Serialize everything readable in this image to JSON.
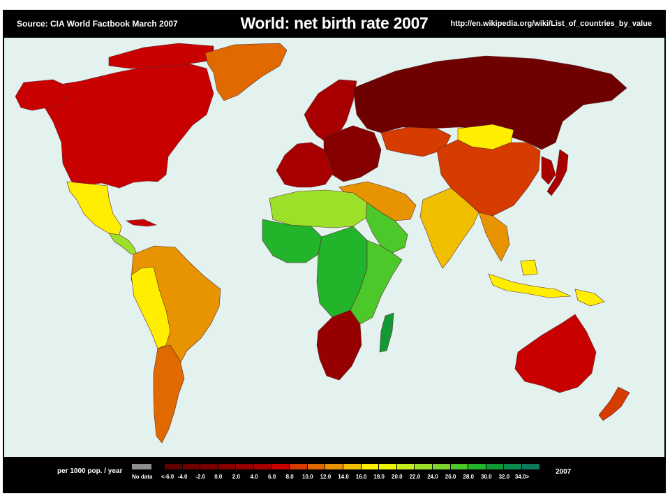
{
  "header": {
    "source": "Source: CIA World Factbook March 2007",
    "title": "World: net birth rate 2007",
    "url": "http://en.wikipedia.org/wiki/List_of_countries_by_value"
  },
  "legend": {
    "units": "per 1000 pop. / year",
    "nodata_label": "No data",
    "nodata_color": "#8e8e8e",
    "year": "2007",
    "ticks": [
      "<-6.0",
      "-4.0",
      "-2.0",
      "0.0",
      "2.0",
      "4.0",
      "6.0",
      "8.0",
      "10.0",
      "12.0",
      "14.0",
      "16.0",
      "18.0",
      "20.0",
      "22.0",
      "24.0",
      "26.0",
      "28.0",
      "30.0",
      "32.0",
      "34.0>"
    ],
    "colors": [
      "#5e0000",
      "#6e0000",
      "#7a0000",
      "#870000",
      "#970000",
      "#a80000",
      "#c80000",
      "#d63b00",
      "#e06a00",
      "#e89400",
      "#f0c000",
      "#ffee00",
      "#ecf400",
      "#c6ee1a",
      "#9de02a",
      "#7cd42c",
      "#4cc82a",
      "#22b42a",
      "#119a34",
      "#0f8a4e",
      "#0e7a5c"
    ]
  },
  "map": {
    "ocean_color": "#e3f1ef",
    "regions": [
      {
        "name": "north-america",
        "color": "#c80000"
      },
      {
        "name": "alaska",
        "color": "#c80000"
      },
      {
        "name": "canada-arctic-islands",
        "color": "#c80000"
      },
      {
        "name": "greenland",
        "color": "#e06a00"
      },
      {
        "name": "mexico",
        "color": "#ffee00"
      },
      {
        "name": "central-america",
        "color": "#9de02a"
      },
      {
        "name": "cuba",
        "color": "#c80000"
      },
      {
        "name": "south-america",
        "color": "#e89400"
      },
      {
        "name": "andes-west",
        "color": "#ffee00"
      },
      {
        "name": "argentina-chile",
        "color": "#e06a00"
      },
      {
        "name": "western-europe",
        "color": "#a80000"
      },
      {
        "name": "scandinavia",
        "color": "#a80000"
      },
      {
        "name": "eastern-europe",
        "color": "#870000"
      },
      {
        "name": "russia",
        "color": "#6e0000"
      },
      {
        "name": "kazakhstan",
        "color": "#d63b00"
      },
      {
        "name": "mongolia",
        "color": "#ffee00"
      },
      {
        "name": "china",
        "color": "#d63b00"
      },
      {
        "name": "japan-korea",
        "color": "#a80000"
      },
      {
        "name": "middle-east",
        "color": "#4cc82a"
      },
      {
        "name": "turkey-iran",
        "color": "#e89400"
      },
      {
        "name": "south-asia",
        "color": "#f0c000"
      },
      {
        "name": "southeast-asia",
        "color": "#e89400"
      },
      {
        "name": "indonesia",
        "color": "#ffee00"
      },
      {
        "name": "north-africa",
        "color": "#9de02a"
      },
      {
        "name": "west-africa",
        "color": "#22b42a"
      },
      {
        "name": "central-africa",
        "color": "#22b42a"
      },
      {
        "name": "east-africa",
        "color": "#4cc82a"
      },
      {
        "name": "southern-africa",
        "color": "#970000"
      },
      {
        "name": "madagascar",
        "color": "#119a34"
      },
      {
        "name": "australia",
        "color": "#c80000"
      },
      {
        "name": "new-zealand",
        "color": "#d63b00"
      },
      {
        "name": "papua-new-guinea",
        "color": "#ffee00"
      }
    ]
  }
}
